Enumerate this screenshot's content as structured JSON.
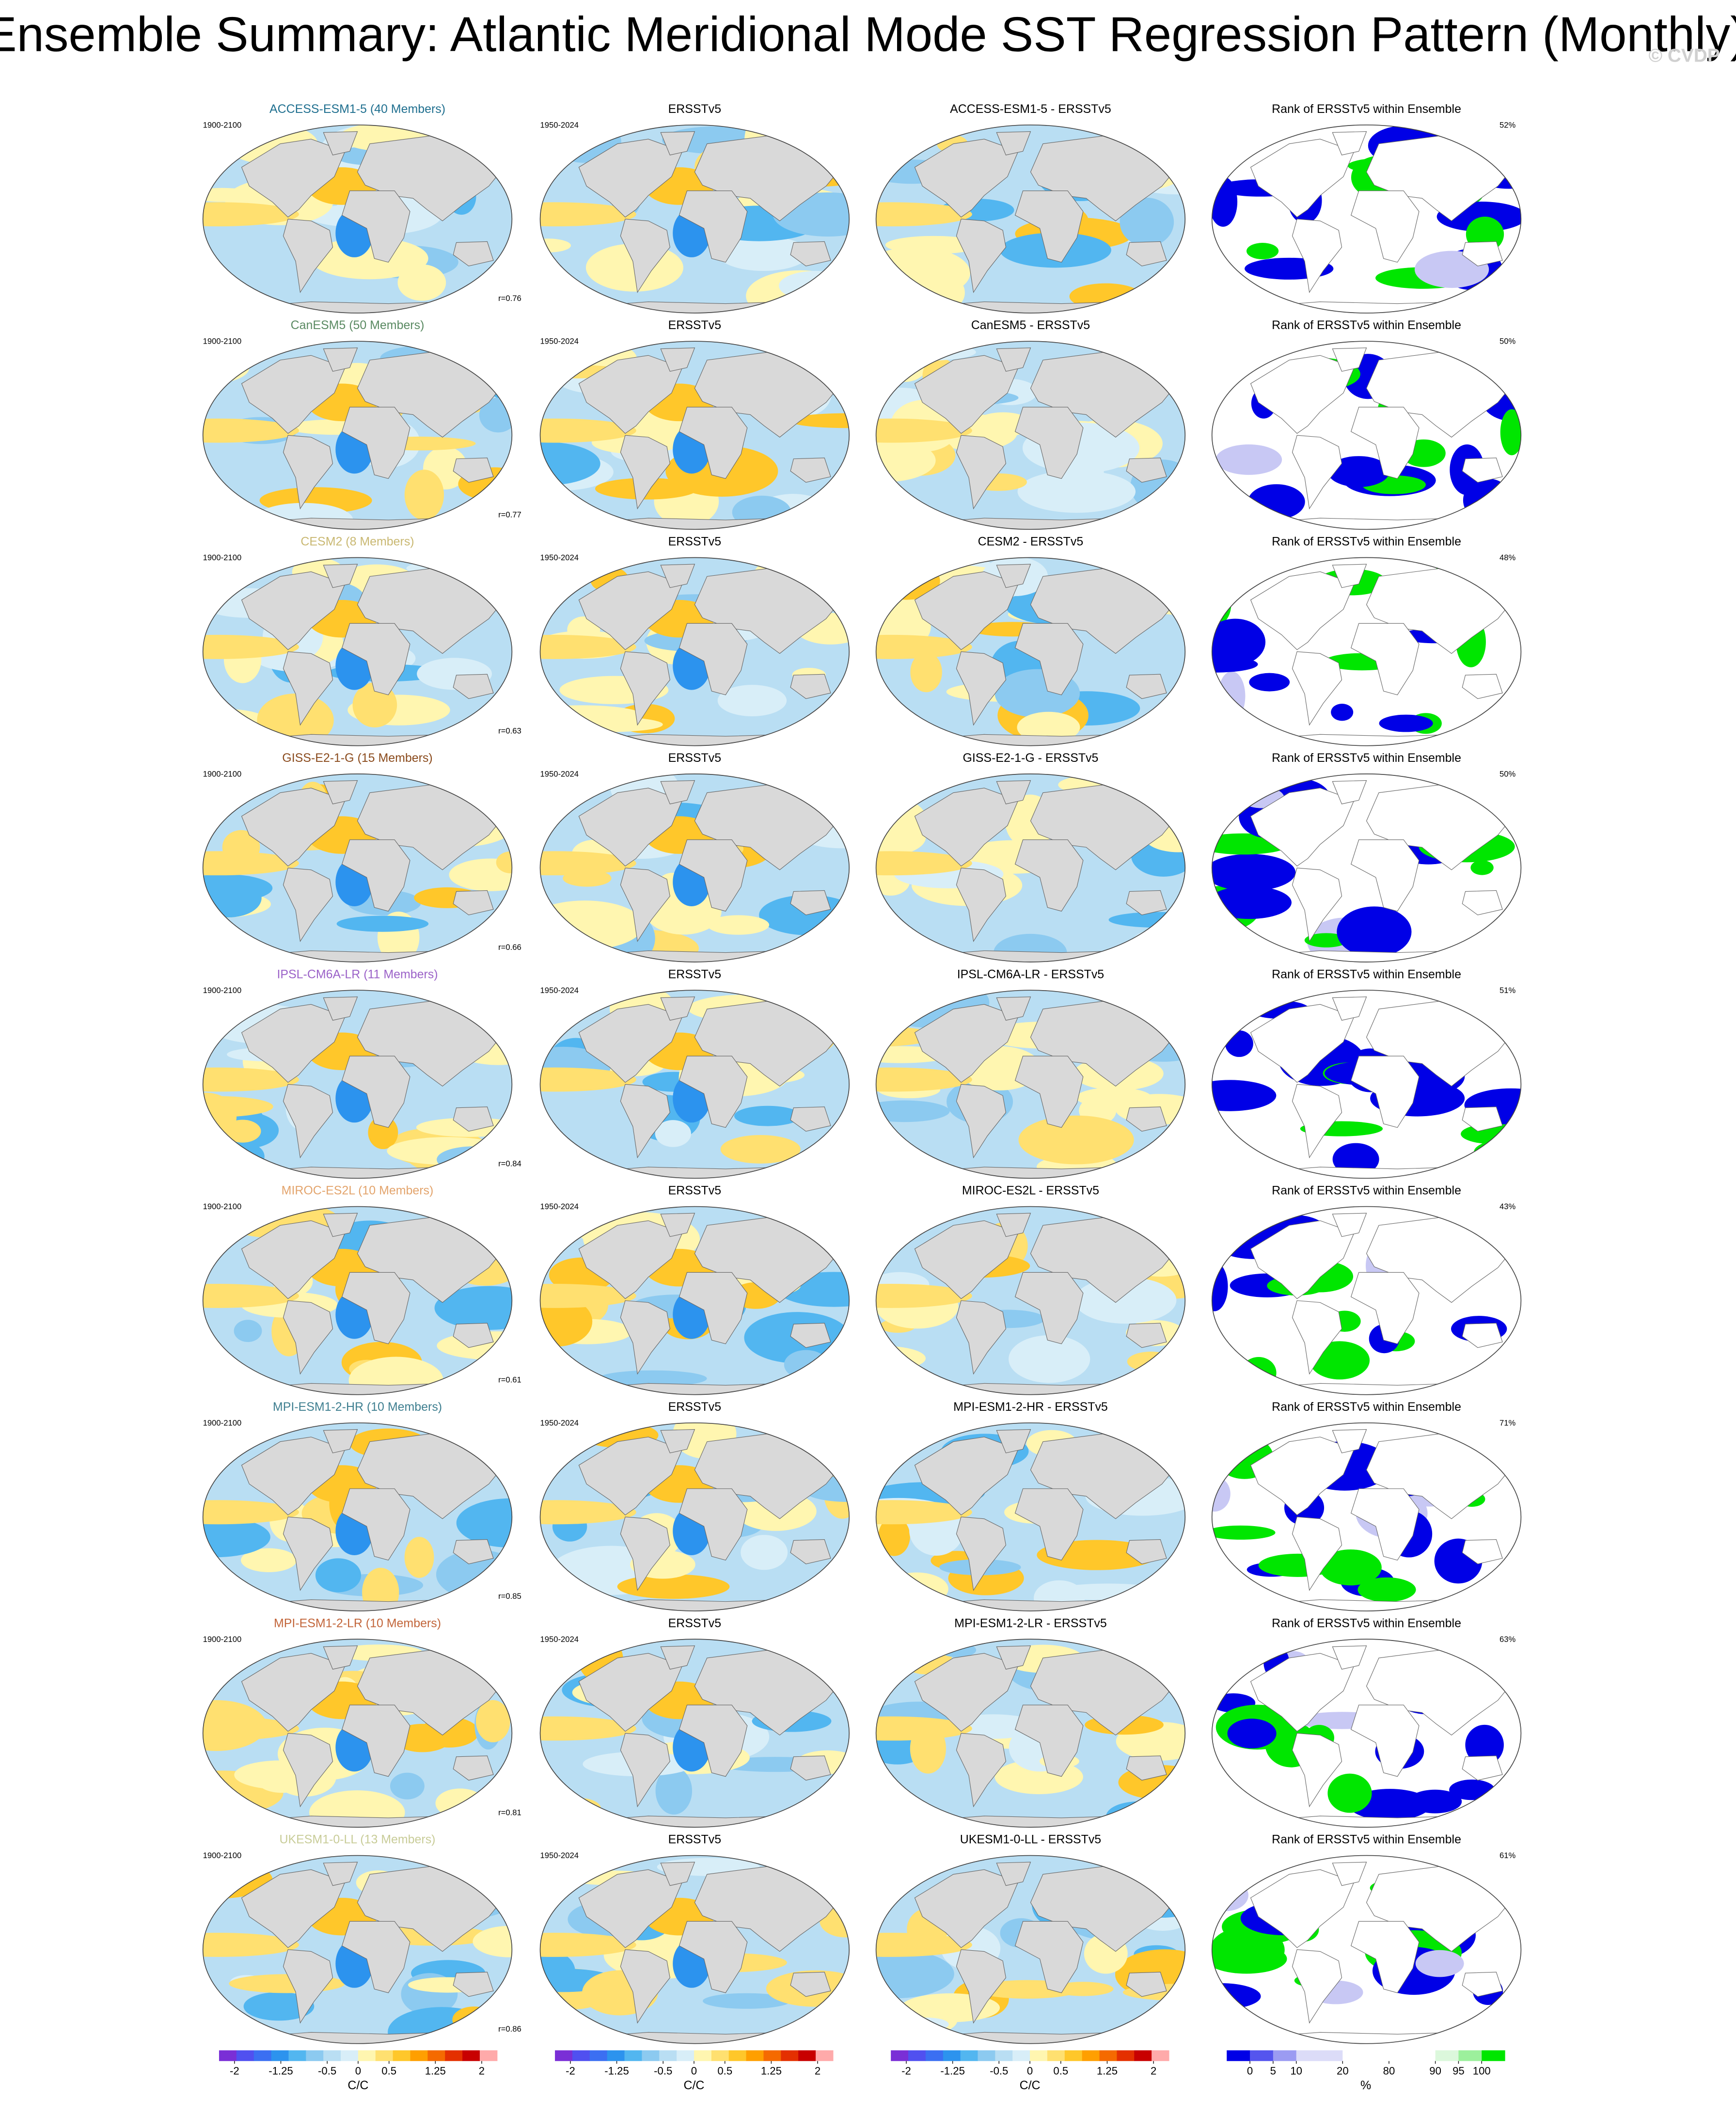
{
  "title": "Ensemble Summary: Atlantic Meridional Mode SST Regression Pattern (Monthly)",
  "watermark": "© CVDP",
  "rows": [
    {
      "model_title": "ACCESS-ESM1-5 (40 Members)",
      "model_color": "#1f6f8f",
      "model_period": "1900-2100",
      "r_label": "r=0.76",
      "obs_title": "ERSSTv5",
      "obs_period": "1950-2024",
      "diff_title": "ACCESS-ESM1-5 - ERSSTv5",
      "rank_title": "Rank of ERSSTv5 within Ensemble",
      "rank_pct": "52%"
    },
    {
      "model_title": "CanESM5 (50 Members)",
      "model_color": "#5a8a62",
      "model_period": "1900-2100",
      "r_label": "r=0.77",
      "obs_title": "ERSSTv5",
      "obs_period": "1950-2024",
      "diff_title": "CanESM5 - ERSSTv5",
      "rank_title": "Rank of ERSSTv5 within Ensemble",
      "rank_pct": "50%"
    },
    {
      "model_title": "CESM2 (8 Members)",
      "model_color": "#c9b872",
      "model_period": "1900-2100",
      "r_label": "r=0.63",
      "obs_title": "ERSSTv5",
      "obs_period": "1950-2024",
      "diff_title": "CESM2 - ERSSTv5",
      "rank_title": "Rank of ERSSTv5 within Ensemble",
      "rank_pct": "48%"
    },
    {
      "model_title": "GISS-E2-1-G (15 Members)",
      "model_color": "#8a4a1c",
      "model_period": "1900-2100",
      "r_label": "r=0.66",
      "obs_title": "ERSSTv5",
      "obs_period": "1950-2024",
      "diff_title": "GISS-E2-1-G - ERSSTv5",
      "rank_title": "Rank of ERSSTv5 within Ensemble",
      "rank_pct": "50%"
    },
    {
      "model_title": "IPSL-CM6A-LR (11 Members)",
      "model_color": "#9b62c8",
      "model_period": "1900-2100",
      "r_label": "r=0.84",
      "obs_title": "ERSSTv5",
      "obs_period": "1950-2024",
      "diff_title": "IPSL-CM6A-LR - ERSSTv5",
      "rank_title": "Rank of ERSSTv5 within Ensemble",
      "rank_pct": "51%"
    },
    {
      "model_title": "MIROC-ES2L (10 Members)",
      "model_color": "#e3a46c",
      "model_period": "1900-2100",
      "r_label": "r=0.61",
      "obs_title": "ERSSTv5",
      "obs_period": "1950-2024",
      "diff_title": "MIROC-ES2L - ERSSTv5",
      "rank_title": "Rank of ERSSTv5 within Ensemble",
      "rank_pct": "43%"
    },
    {
      "model_title": "MPI-ESM1-2-HR (10 Members)",
      "model_color": "#3f7f90",
      "model_period": "1900-2100",
      "r_label": "r=0.85",
      "obs_title": "ERSSTv5",
      "obs_period": "1950-2024",
      "diff_title": "MPI-ESM1-2-HR - ERSSTv5",
      "rank_title": "Rank of ERSSTv5 within Ensemble",
      "rank_pct": "71%"
    },
    {
      "model_title": "MPI-ESM1-2-LR (10 Members)",
      "model_color": "#c2653a",
      "model_period": "1900-2100",
      "r_label": "r=0.81",
      "obs_title": "ERSSTv5",
      "obs_period": "1950-2024",
      "diff_title": "MPI-ESM1-2-LR - ERSSTv5",
      "rank_title": "Rank of ERSSTv5 within Ensemble",
      "rank_pct": "63%"
    },
    {
      "model_title": "UKESM1-0-LL (13 Members)",
      "model_color": "#c8cc98",
      "model_period": "1900-2100",
      "r_label": "r=0.86",
      "obs_title": "ERSSTv5",
      "obs_period": "1950-2024",
      "diff_title": "UKESM1-0-LL - ERSSTv5",
      "rank_title": "Rank of ERSSTv5 within Ensemble",
      "rank_pct": "61%"
    }
  ],
  "sst_colorbar": {
    "unit": "C/C",
    "lim": [
      -2.25,
      2.25
    ],
    "ticks": [
      -2,
      -1.25,
      -0.5,
      0,
      0.5,
      1.25,
      2
    ],
    "colors": [
      "#7a2fd6",
      "#5050f0",
      "#3b6ff2",
      "#2c93ee",
      "#52b6f0",
      "#8ccaf0",
      "#b9def3",
      "#d8eef8",
      "#fff6b0",
      "#ffe070",
      "#ffc72a",
      "#ff9f00",
      "#f56a00",
      "#e43000",
      "#c80000",
      "#ffaaaa"
    ]
  },
  "rank_colorbar": {
    "unit": "%",
    "ticks": [
      0,
      5,
      10,
      20,
      80,
      90,
      95,
      100
    ],
    "colors": [
      "#0000e6",
      "#5555ee",
      "#9b9bf2",
      "#dcdcf8",
      "#dcdcf8",
      "#ffffff",
      "#ffffff",
      "#ffffff",
      "#ffffff",
      "#dcf8dc",
      "#9cf09c",
      "#00e600"
    ]
  }
}
